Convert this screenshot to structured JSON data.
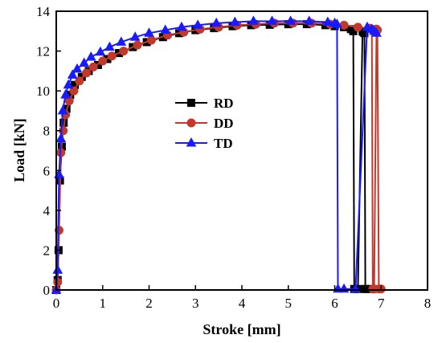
{
  "chart_data": {
    "type": "line",
    "title": "",
    "xlabel": "Stroke [mm]",
    "ylabel": "Load [kN]",
    "xlim": [
      0,
      8
    ],
    "ylim": [
      0,
      14
    ],
    "xticks": [
      "0",
      "1",
      "2",
      "3",
      "4",
      "5",
      "6",
      "7",
      "8"
    ],
    "yticks": [
      "0",
      "2",
      "4",
      "6",
      "8",
      "10",
      "12",
      "14"
    ],
    "grid": false,
    "legend_position": "center-left",
    "series": [
      {
        "name": "RD",
        "color": "#000000",
        "marker": "square",
        "x": [
          0.0,
          0.03,
          0.05,
          0.08,
          0.12,
          0.16,
          0.22,
          0.3,
          0.4,
          0.55,
          0.7,
          0.9,
          1.1,
          1.35,
          1.65,
          1.95,
          2.3,
          2.65,
          3.0,
          3.4,
          3.8,
          4.2,
          4.6,
          5.0,
          5.4,
          5.8,
          6.0,
          6.2,
          6.35,
          6.4,
          6.42,
          6.5,
          6.6,
          6.62,
          6.64,
          6.66,
          6.7
        ],
        "y": [
          0.0,
          0.5,
          2.0,
          5.5,
          7.2,
          8.4,
          9.1,
          9.8,
          10.3,
          10.7,
          11.0,
          11.3,
          11.6,
          11.9,
          12.2,
          12.45,
          12.7,
          12.9,
          13.05,
          13.15,
          13.25,
          13.3,
          13.32,
          13.35,
          13.35,
          13.3,
          13.25,
          13.2,
          13.1,
          13.0,
          0.05,
          0.05,
          13.0,
          12.95,
          12.9,
          0.05,
          0.05
        ]
      },
      {
        "name": "DD",
        "color": "#c0392b",
        "marker": "circle",
        "x": [
          0.0,
          0.03,
          0.06,
          0.1,
          0.15,
          0.2,
          0.28,
          0.38,
          0.5,
          0.65,
          0.8,
          1.0,
          1.2,
          1.45,
          1.75,
          2.05,
          2.4,
          2.75,
          3.1,
          3.5,
          3.9,
          4.3,
          4.7,
          5.1,
          5.5,
          5.9,
          6.2,
          6.5,
          6.75,
          6.8,
          6.82,
          6.85,
          6.9,
          6.92,
          6.95,
          7.0
        ],
        "y": [
          0.0,
          0.4,
          3.0,
          6.9,
          8.0,
          8.8,
          9.5,
          10.0,
          10.5,
          10.9,
          11.2,
          11.5,
          11.75,
          12.0,
          12.3,
          12.55,
          12.8,
          12.95,
          13.1,
          13.2,
          13.3,
          13.35,
          13.4,
          13.4,
          13.4,
          13.35,
          13.3,
          13.2,
          13.15,
          13.1,
          0.05,
          0.05,
          13.1,
          13.05,
          0.05,
          0.05
        ]
      },
      {
        "name": "TD",
        "color": "#1a1aff",
        "marker": "triangle",
        "x": [
          0.0,
          0.03,
          0.06,
          0.1,
          0.14,
          0.2,
          0.26,
          0.35,
          0.45,
          0.6,
          0.75,
          0.95,
          1.15,
          1.4,
          1.7,
          2.0,
          2.35,
          2.7,
          3.05,
          3.45,
          3.85,
          4.25,
          4.65,
          5.05,
          5.45,
          5.85,
          6.0,
          6.05,
          6.07,
          6.2,
          6.45,
          6.7,
          6.8,
          6.85,
          6.9
        ],
        "y": [
          0.0,
          1.0,
          5.8,
          7.6,
          9.0,
          9.8,
          10.3,
          10.8,
          11.1,
          11.4,
          11.7,
          11.95,
          12.2,
          12.45,
          12.7,
          12.9,
          13.05,
          13.2,
          13.3,
          13.4,
          13.45,
          13.5,
          13.5,
          13.5,
          13.5,
          13.45,
          13.4,
          13.35,
          0.05,
          0.05,
          0.05,
          13.2,
          13.1,
          13.0,
          12.9
        ]
      }
    ]
  }
}
